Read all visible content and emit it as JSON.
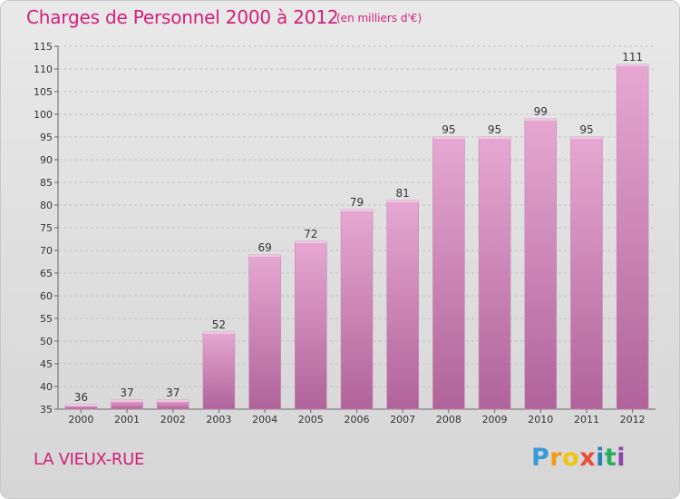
{
  "title": "Charges de Personnel 2000 à 2012",
  "unit_note": "(en milliers d'€)",
  "place_name": "LA VIEUX-RUE",
  "logo": {
    "letters": [
      "P",
      "r",
      "o",
      "x",
      "i",
      "t",
      "i"
    ],
    "colors": [
      "#3a9ad9",
      "#f39c12",
      "#f1c40f",
      "#e74c3c",
      "#2980b9",
      "#27ae60",
      "#8e44ad"
    ]
  },
  "colors": {
    "accent": "#d11f7a",
    "bar_top": "#e6a8d2",
    "bar_bottom": "#b0639a",
    "grid": "#c4c4c4"
  },
  "chart_data": {
    "type": "bar",
    "title": "Charges de Personnel 2000 à 2012",
    "subtitle": "(en milliers d'€)",
    "categories": [
      "2000",
      "2001",
      "2002",
      "2003",
      "2004",
      "2005",
      "2006",
      "2007",
      "2008",
      "2009",
      "2010",
      "2011",
      "2012"
    ],
    "values": [
      36,
      37,
      37,
      52,
      69,
      72,
      79,
      81,
      95,
      95,
      99,
      95,
      111
    ],
    "ylim": [
      35,
      115
    ],
    "yticks": [
      35,
      40,
      45,
      50,
      55,
      60,
      65,
      70,
      75,
      80,
      85,
      90,
      95,
      100,
      105,
      110,
      115
    ],
    "grid": "horizontal-dashed"
  }
}
